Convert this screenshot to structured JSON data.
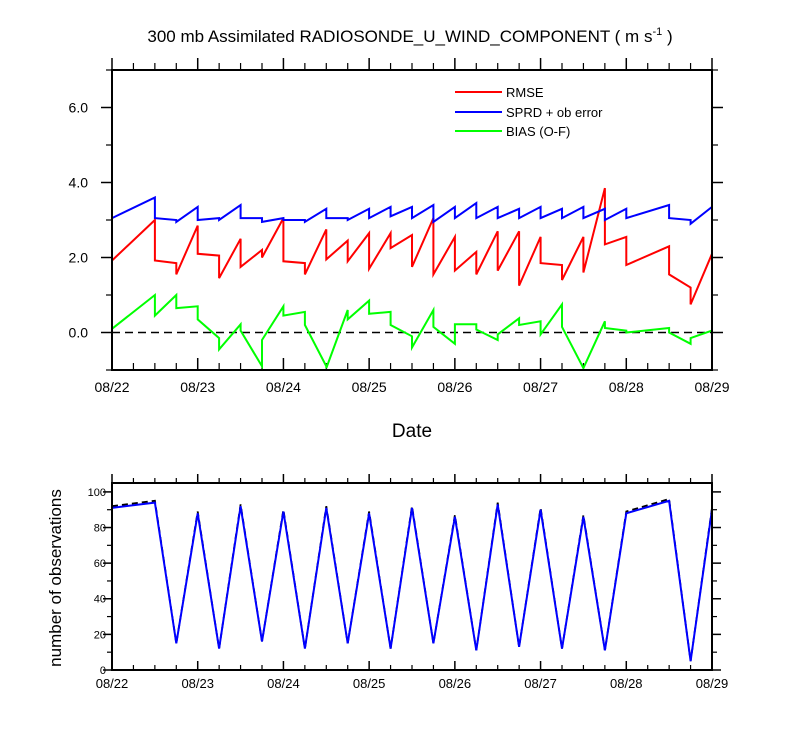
{
  "chart_data": [
    {
      "type": "line",
      "title": "300 mb Assimilated RADIOSONDE_U_WIND_COMPONENT",
      "title_units_prefix": "( m s",
      "title_units_exp": "-1",
      "title_units_suffix": " )",
      "xlabel": "Date",
      "ylabel": "",
      "x_ticks": [
        "08/22",
        "08/23",
        "08/24",
        "08/25",
        "08/26",
        "08/27",
        "08/28",
        "08/29"
      ],
      "xlim": [
        0,
        7
      ],
      "ylim": [
        -1,
        7
      ],
      "y_ticks": [
        "0.0",
        "2.0",
        "4.0",
        "6.0"
      ],
      "y_tick_values": [
        0,
        2,
        4,
        6
      ],
      "zero_line": "dashed",
      "legend_placement": "top-right",
      "series": [
        {
          "name": "RMSE",
          "color": "#ff0000",
          "x": [
            0,
            0.5,
            0.5,
            0.75,
            0.75,
            1,
            1,
            1.25,
            1.25,
            1.5,
            1.5,
            1.75,
            1.75,
            2,
            2,
            2.25,
            2.25,
            2.5,
            2.5,
            2.75,
            2.75,
            3,
            3,
            3.25,
            3.25,
            3.5,
            3.5,
            3.75,
            3.75,
            4,
            4,
            4.25,
            4.25,
            4.5,
            4.5,
            4.75,
            4.75,
            5,
            5,
            5.25,
            5.25,
            5.5,
            5.5,
            5.75,
            5.75,
            6,
            6,
            6.5,
            6.5,
            6.75,
            6.75,
            7
          ],
          "y": [
            1.92,
            3.0,
            1.92,
            1.85,
            1.55,
            2.85,
            2.1,
            2.05,
            1.45,
            2.5,
            1.75,
            2.2,
            2.0,
            3.05,
            1.9,
            1.85,
            1.55,
            2.75,
            1.95,
            2.45,
            1.9,
            2.65,
            1.7,
            2.65,
            2.25,
            2.6,
            1.75,
            3.05,
            1.55,
            2.55,
            1.65,
            2.15,
            1.55,
            2.7,
            1.65,
            2.7,
            1.25,
            2.55,
            1.85,
            1.8,
            1.4,
            2.55,
            1.6,
            3.85,
            2.35,
            2.55,
            1.8,
            2.3,
            1.55,
            1.2,
            0.75,
            2.1
          ]
        },
        {
          "name": "SPRD + ob error",
          "color": "#0000ff",
          "x": [
            0,
            0.5,
            0.5,
            0.75,
            0.75,
            1,
            1,
            1.25,
            1.25,
            1.5,
            1.5,
            1.75,
            1.75,
            2,
            2,
            2.25,
            2.25,
            2.5,
            2.5,
            2.75,
            2.75,
            3,
            3,
            3.25,
            3.25,
            3.5,
            3.5,
            3.75,
            3.75,
            4,
            4,
            4.25,
            4.25,
            4.5,
            4.5,
            4.75,
            4.75,
            5,
            5,
            5.25,
            5.25,
            5.5,
            5.5,
            5.75,
            5.75,
            6,
            6,
            6.5,
            6.5,
            6.75,
            6.75,
            7
          ],
          "y": [
            3.05,
            3.6,
            3.05,
            3.0,
            2.95,
            3.35,
            3.0,
            3.05,
            3.0,
            3.4,
            3.05,
            3.05,
            2.95,
            3.05,
            3.0,
            3.0,
            2.95,
            3.3,
            3.05,
            3.05,
            3.0,
            3.3,
            3.05,
            3.35,
            3.1,
            3.35,
            3.05,
            3.4,
            2.95,
            3.35,
            3.05,
            3.45,
            3.05,
            3.35,
            3.05,
            3.3,
            3.05,
            3.35,
            3.05,
            3.3,
            3.05,
            3.35,
            3.05,
            3.3,
            3.0,
            3.3,
            3.05,
            3.4,
            3.05,
            3.0,
            2.9,
            3.35
          ]
        },
        {
          "name": "BIAS (O-F)",
          "color": "#00ff00",
          "x": [
            0,
            0.5,
            0.5,
            0.75,
            0.75,
            1,
            1,
            1.25,
            1.25,
            1.5,
            1.5,
            1.75,
            1.75,
            2,
            2,
            2.25,
            2.25,
            2.5,
            2.5,
            2.75,
            2.75,
            3,
            3,
            3.25,
            3.25,
            3.5,
            3.5,
            3.75,
            3.75,
            4,
            4,
            4.25,
            4.25,
            4.5,
            4.5,
            4.75,
            4.75,
            5,
            5,
            5.25,
            5.25,
            5.5,
            5.5,
            5.75,
            5.75,
            6,
            6,
            6.5,
            6.5,
            6.75,
            6.75,
            7
          ],
          "y": [
            0.1,
            1.0,
            0.45,
            1.0,
            0.65,
            0.7,
            0.35,
            -0.15,
            -0.45,
            0.22,
            0.05,
            -0.9,
            -0.2,
            0.7,
            0.45,
            0.55,
            0.2,
            -0.9,
            -0.95,
            0.6,
            0.35,
            0.85,
            0.5,
            0.55,
            0.2,
            -0.1,
            -0.4,
            0.6,
            0.15,
            -0.3,
            0.22,
            0.22,
            0.08,
            -0.2,
            -0.05,
            0.38,
            0.2,
            0.3,
            -0.05,
            0.75,
            0.15,
            -0.95,
            -0.95,
            0.3,
            0.12,
            0.05,
            0.0,
            0.12,
            0.0,
            -0.3,
            -0.15,
            0.05
          ]
        }
      ]
    },
    {
      "type": "line",
      "title": "",
      "xlabel": "",
      "ylabel": "number of observations",
      "x_ticks": [
        "08/22",
        "08/23",
        "08/24",
        "08/25",
        "08/26",
        "08/27",
        "08/28",
        "08/29"
      ],
      "xlim": [
        0,
        7
      ],
      "ylim": [
        0,
        105
      ],
      "y_ticks": [
        "0",
        "20",
        "40",
        "60",
        "80",
        "100"
      ],
      "y_tick_values": [
        0,
        20,
        40,
        60,
        80,
        100
      ],
      "series": [
        {
          "style": "dashed",
          "color": "#000000",
          "x": [
            0,
            0.5,
            0.75,
            1,
            1.25,
            1.5,
            1.75,
            2,
            2.25,
            2.5,
            2.75,
            3,
            3.25,
            3.5,
            3.75,
            4,
            4.25,
            4.5,
            4.75,
            5,
            5.25,
            5.5,
            5.75,
            6,
            6.5,
            6.75,
            7
          ],
          "y": [
            92,
            95,
            15,
            89,
            12,
            93,
            16,
            90,
            12,
            92,
            15,
            89,
            12,
            92,
            15,
            87,
            11,
            94,
            13,
            91,
            12,
            87,
            11,
            89,
            96,
            5,
            91
          ]
        },
        {
          "style": "solid",
          "color": "#0000ff",
          "x": [
            0,
            0.5,
            0.75,
            1,
            1.25,
            1.5,
            1.75,
            2,
            2.25,
            2.5,
            2.75,
            3,
            3.25,
            3.5,
            3.75,
            4,
            4.25,
            4.5,
            4.75,
            5,
            5.25,
            5.5,
            5.75,
            6,
            6.5,
            6.75,
            7
          ],
          "y": [
            91,
            94,
            15,
            88,
            12,
            92,
            16,
            89,
            12,
            91,
            15,
            88,
            12,
            91,
            15,
            86,
            11,
            93,
            13,
            90,
            12,
            86,
            11,
            88,
            95,
            5,
            90
          ]
        }
      ]
    }
  ]
}
